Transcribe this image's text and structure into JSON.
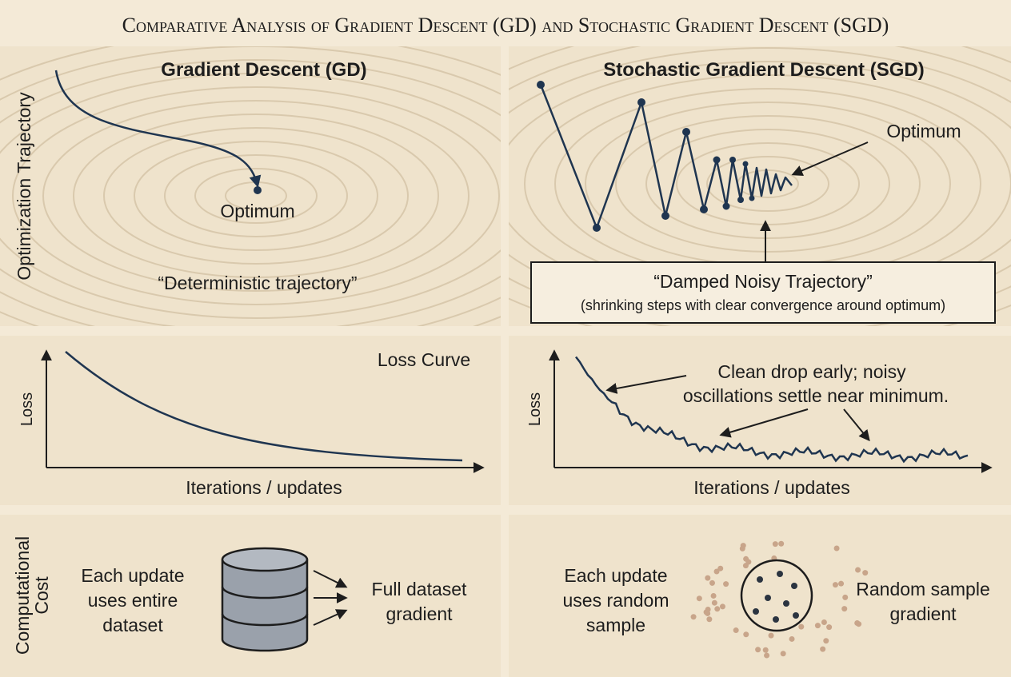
{
  "title": "Comparative Analysis of Gradient Descent (GD) and Stochastic Gradient Descent (SGD)",
  "row_labels": {
    "trajectory": "Optimization Trajectory",
    "cost": [
      "Computational",
      "Cost"
    ]
  },
  "gd_trajectory": {
    "title": "Gradient Descent (GD)",
    "optimum_label": "Optimum",
    "caption": "“Deterministic trajectory”"
  },
  "sgd_trajectory": {
    "title": "Stochastic Gradient Descent (SGD)",
    "optimum_label": "Optimum",
    "caption": "“Damped Noisy Trajectory”",
    "subcaption": "(shrinking steps with clear convergence around optimum)"
  },
  "gd_loss": {
    "title": "Loss Curve",
    "y_label": "Loss",
    "x_label": "Iterations / updates"
  },
  "sgd_loss": {
    "y_label": "Loss",
    "x_label": "Iterations / updates",
    "annotation": [
      "Clean drop early;  noisy",
      "oscillations settle near minimum."
    ]
  },
  "gd_cost": {
    "description": [
      "Each update",
      "uses entire",
      "dataset"
    ],
    "result": [
      "Full dataset",
      "gradient"
    ]
  },
  "sgd_cost": {
    "description": [
      "Each update",
      "uses random",
      "sample"
    ],
    "result": [
      "Random sample",
      "gradient"
    ]
  }
}
